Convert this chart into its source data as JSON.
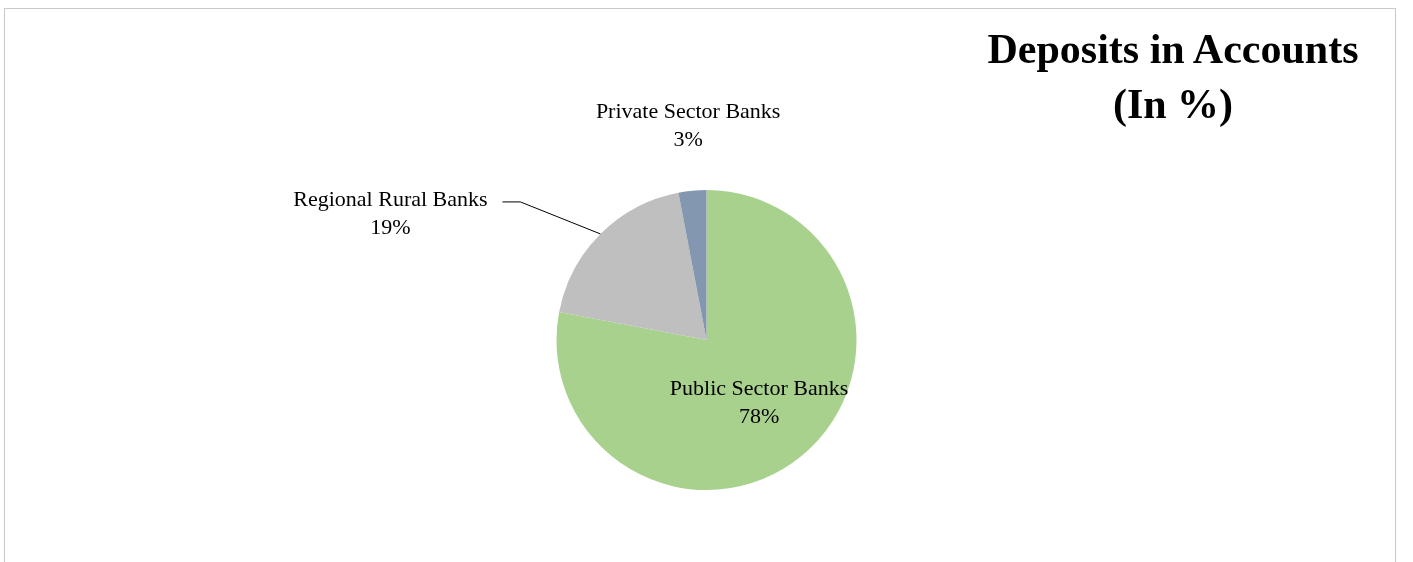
{
  "chart_data": {
    "type": "pie",
    "title": "Deposits in Accounts (In %)",
    "categories": [
      "Public Sector Banks",
      "Regional Rural Banks",
      "Private Sector Banks"
    ],
    "values": [
      78,
      19,
      3
    ],
    "colors": [
      "#a9d18e",
      "#bfbfbf",
      "#8497b0"
    ],
    "value_labels": [
      "78%",
      "19%",
      "3%"
    ],
    "legend": false
  }
}
